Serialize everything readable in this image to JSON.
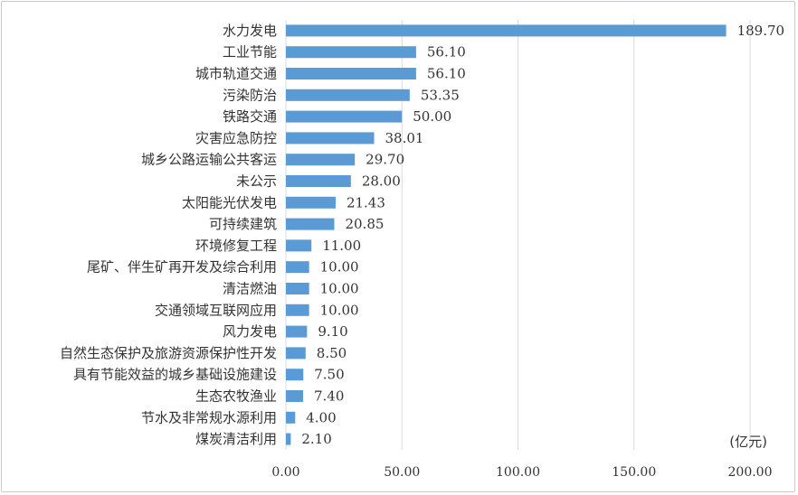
{
  "chart_data": {
    "type": "bar",
    "orientation": "horizontal",
    "categories": [
      "水力发电",
      "工业节能",
      "城市轨道交通",
      "污染防治",
      "铁路交通",
      "灾害应急防控",
      "城乡公路运输公共客运",
      "未公示",
      "太阳能光伏发电",
      "可持续建筑",
      "环境修复工程",
      "尾矿、伴生矿再开发及综合利用",
      "清洁燃油",
      "交通领域互联网应用",
      "风力发电",
      "自然生态保护及旅游资源保护性开发",
      "具有节能效益的城乡基础设施建设",
      "生态农牧渔业",
      "节水及非常规水源利用",
      "煤炭清洁利用"
    ],
    "values": [
      189.7,
      56.1,
      56.1,
      53.35,
      50.0,
      38.01,
      29.7,
      28.0,
      21.43,
      20.85,
      11.0,
      10.0,
      10.0,
      10.0,
      9.1,
      8.5,
      7.5,
      7.4,
      4.0,
      2.1
    ],
    "value_labels": [
      "189.70",
      "56.10",
      "56.10",
      "53.35",
      "50.00",
      "38.01",
      "29.70",
      "28.00",
      "21.43",
      "20.85",
      "11.00",
      "10.00",
      "10.00",
      "10.00",
      "9.10",
      "8.50",
      "7.50",
      "7.40",
      "4.00",
      "2.10"
    ],
    "x_ticks": [
      "0.00",
      "50.00",
      "100.00",
      "150.00",
      "200.00"
    ],
    "x_tick_values": [
      0,
      50,
      100,
      150,
      200
    ],
    "xlim": [
      0,
      200
    ],
    "unit": "(亿元)",
    "title": "",
    "xlabel": "",
    "ylabel": "",
    "grid": "vertical",
    "legend": "none",
    "bar_color": "#5b9bd5",
    "grid_color": "#d9d9d9"
  }
}
